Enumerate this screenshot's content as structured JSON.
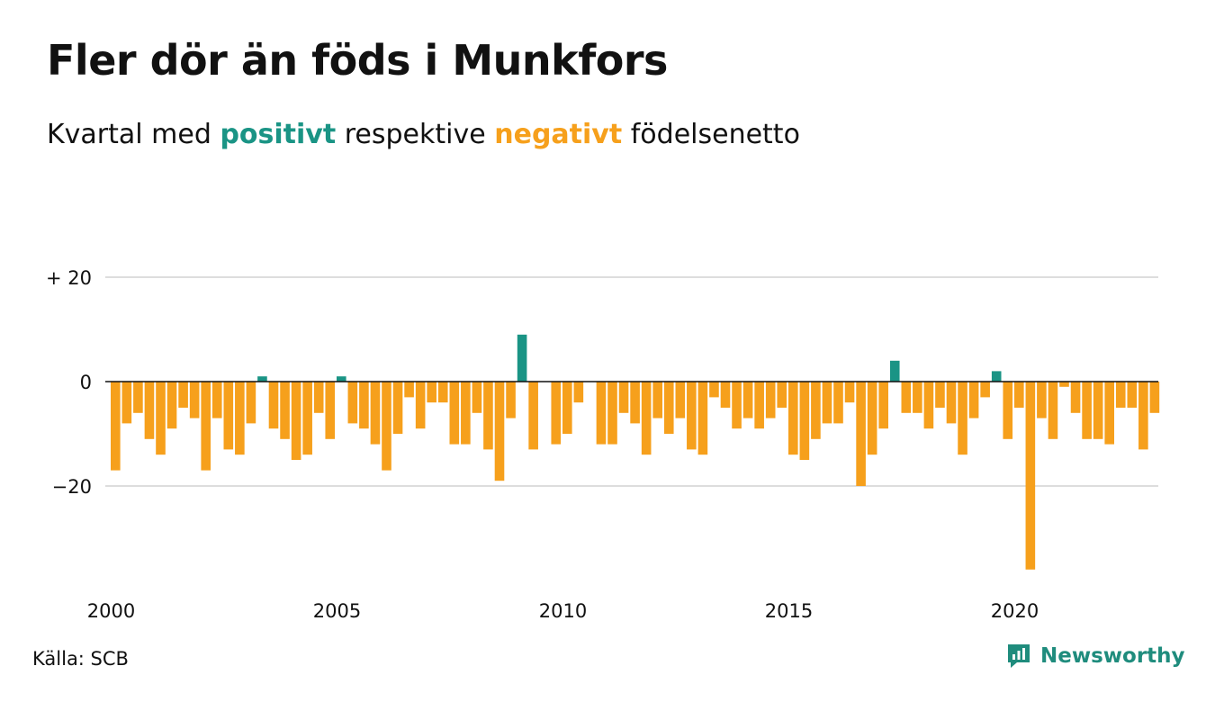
{
  "title": "Fler dör än föds i Munkfors",
  "subtitle": {
    "prefix": "Kvartal med",
    "positive_word": "positivt",
    "middle": "respektive",
    "negative_word": "negativt",
    "suffix": "födelsenetto"
  },
  "source": "Källa: SCB",
  "brand": {
    "name": "Newsworthy",
    "icon": "newsworthy-logo-icon"
  },
  "colors": {
    "positive": "#1a9485",
    "negative": "#f6a01c",
    "grid": "#dddddd",
    "zero": "#111111"
  },
  "chart_data": {
    "type": "bar",
    "start_year": 2000,
    "start_quarter": 1,
    "ylim": [
      -37,
      21
    ],
    "y_ticks": [
      {
        "value": 20,
        "label": "+ 20"
      },
      {
        "value": 0,
        "label": "0"
      },
      {
        "value": -20,
        "label": "−20"
      }
    ],
    "x_ticks": [
      {
        "label": "2000"
      },
      {
        "label": "2005"
      },
      {
        "label": "2010"
      },
      {
        "label": "2015"
      },
      {
        "label": "2020"
      }
    ],
    "values": [
      -17,
      -8,
      -6,
      -11,
      -14,
      -9,
      -5,
      -7,
      -17,
      -7,
      -13,
      -14,
      -8,
      1,
      -9,
      -11,
      -15,
      -14,
      -6,
      -11,
      1,
      -8,
      -9,
      -12,
      -17,
      -10,
      -3,
      -9,
      -4,
      -4,
      -12,
      -12,
      -6,
      -13,
      -19,
      -7,
      9,
      -13,
      0,
      -12,
      -10,
      -4,
      0,
      -12,
      -12,
      -6,
      -8,
      -14,
      -7,
      -10,
      -7,
      -13,
      -14,
      -3,
      -5,
      -9,
      -7,
      -9,
      -7,
      -5,
      -14,
      -15,
      -11,
      -8,
      -8,
      -4,
      -20,
      -14,
      -9,
      4,
      -6,
      -6,
      -9,
      -5,
      -8,
      -14,
      -7,
      -3,
      2,
      -11,
      -5,
      -36,
      -7,
      -11,
      -1,
      -6,
      -11,
      -11,
      -12,
      -5,
      -5,
      -13,
      -6
    ]
  }
}
